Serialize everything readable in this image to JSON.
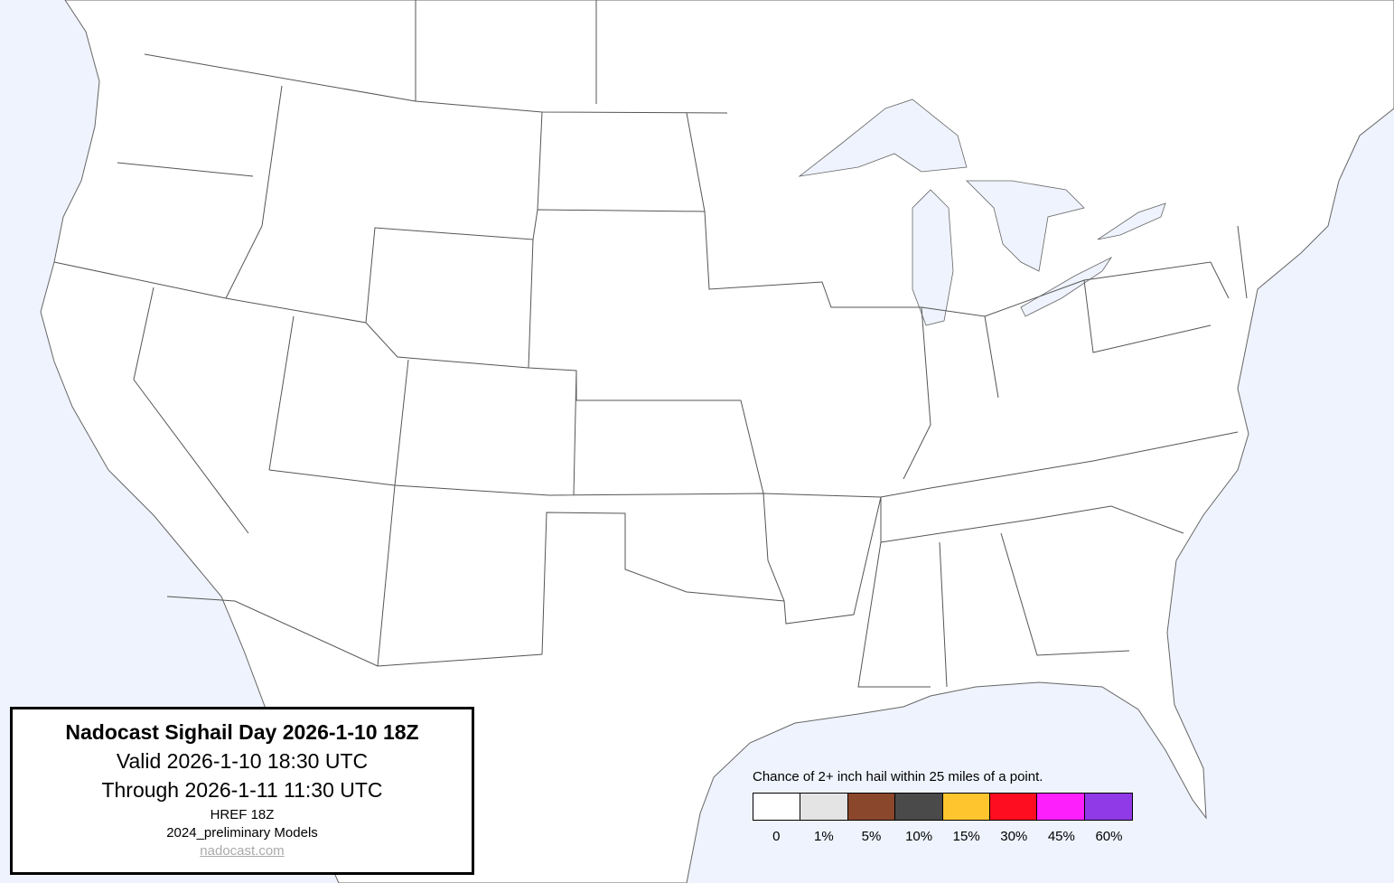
{
  "title_box": {
    "title": "Nadocast Sighail Day 2026-1-10 18Z",
    "valid": "Valid 2026-1-10 18:30 UTC",
    "through": "Through 2026-1-11 11:30 UTC",
    "model": "HREF 18Z",
    "models_version": "2024_preliminary Models",
    "link": "nadocast.com"
  },
  "legend": {
    "title": "Chance of 2+ inch hail within 25 miles of a point.",
    "items": [
      {
        "label": "0",
        "color": "#ffffff"
      },
      {
        "label": "1%",
        "color": "#e4e4e4"
      },
      {
        "label": "5%",
        "color": "#8b472b"
      },
      {
        "label": "10%",
        "color": "#4a4a4a"
      },
      {
        "label": "15%",
        "color": "#fec52e"
      },
      {
        "label": "30%",
        "color": "#fd0d1f"
      },
      {
        "label": "45%",
        "color": "#fd20fd"
      },
      {
        "label": "60%",
        "color": "#9039e6"
      }
    ]
  },
  "map": {
    "water_color": "#eef3fd",
    "land_color": "#ffffff",
    "border_color": "#555555"
  }
}
